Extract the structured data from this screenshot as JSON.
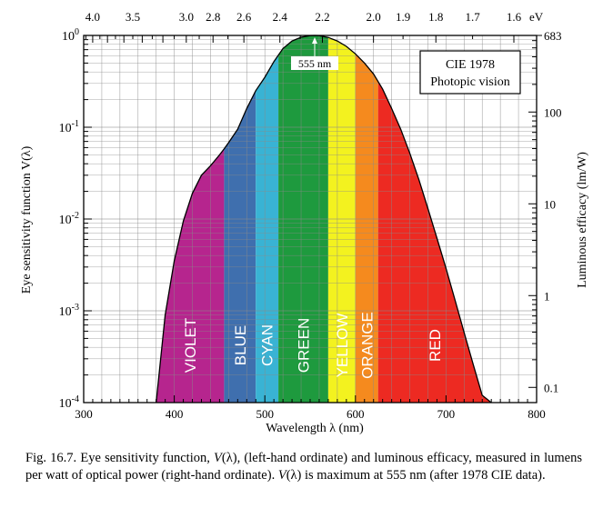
{
  "chart_data": {
    "type": "area",
    "title": "CIE 1978",
    "subtitle": "Photopic vision",
    "xlabel": "Wavelength λ (nm)",
    "ylabel_left": "Eye sensitivity function V(λ)",
    "ylabel_right": "Luminous efficacy (lm/W)",
    "xlim": [
      300,
      800
    ],
    "ylim": [
      0.0001,
      1
    ],
    "yscale": "log",
    "grid": true,
    "x_ticks": [
      "300",
      "400",
      "500",
      "600",
      "700",
      "800"
    ],
    "y_ticks_left": [
      "10^0",
      "10^-1",
      "10^-2",
      "10^-3",
      "10^-4"
    ],
    "y_ticks_right": [
      "683",
      "100",
      "10",
      "1",
      "0.1"
    ],
    "top_axis_unit": "eV",
    "top_ticks": [
      "4.0",
      "3.5",
      "3.0",
      "2.8",
      "2.6",
      "2.4",
      "2.2",
      "2.0",
      "1.9",
      "1.8",
      "1.7",
      "1.6"
    ],
    "peak_annotation": "555 nm",
    "peak_wavelength": 555,
    "x": [
      380,
      390,
      400,
      410,
      420,
      430,
      440,
      450,
      455,
      460,
      470,
      480,
      490,
      500,
      510,
      520,
      530,
      540,
      550,
      555,
      560,
      570,
      580,
      590,
      600,
      610,
      620,
      630,
      640,
      650,
      660,
      670,
      680,
      690,
      700,
      710,
      720,
      730,
      740,
      750
    ],
    "y": [
      0.0001,
      0.0009,
      0.0035,
      0.0095,
      0.019,
      0.03,
      0.038,
      0.05,
      0.058,
      0.068,
      0.095,
      0.16,
      0.25,
      0.35,
      0.52,
      0.72,
      0.87,
      0.955,
      0.995,
      1.0,
      0.995,
      0.95,
      0.87,
      0.76,
      0.63,
      0.5,
      0.38,
      0.26,
      0.16,
      0.095,
      0.052,
      0.027,
      0.013,
      0.0062,
      0.0029,
      0.0013,
      0.00058,
      0.00026,
      0.00012,
      0.0001
    ],
    "bands": [
      {
        "name": "VIOLET",
        "from": 380,
        "to": 455,
        "color": "#b6258e"
      },
      {
        "name": "BLUE",
        "from": 455,
        "to": 490,
        "color": "#3f6fae"
      },
      {
        "name": "CYAN",
        "from": 490,
        "to": 515,
        "color": "#39b3d4"
      },
      {
        "name": "GREEN",
        "from": 515,
        "to": 570,
        "color": "#1e9a3e"
      },
      {
        "name": "YELLOW",
        "from": 570,
        "to": 600,
        "color": "#f3f21f"
      },
      {
        "name": "ORANGE",
        "from": 600,
        "to": 625,
        "color": "#f58a1e"
      },
      {
        "name": "RED",
        "from": 625,
        "to": 750,
        "color": "#ed2a22"
      }
    ]
  },
  "caption": {
    "figure_label": "Fig. 16.7.",
    "text_1": " Eye sensitivity function, ",
    "v_symbol": "V",
    "lambda_arg": "(λ)",
    "text_2": ", (left-hand ordinate) and luminous efficacy, measured in lumens per watt of optical power (right-hand ordinate). ",
    "v_symbol_2": "V",
    "lambda_arg_2": "(λ)",
    "text_3": " is maximum at 555 nm (after 1978 CIE data)."
  }
}
